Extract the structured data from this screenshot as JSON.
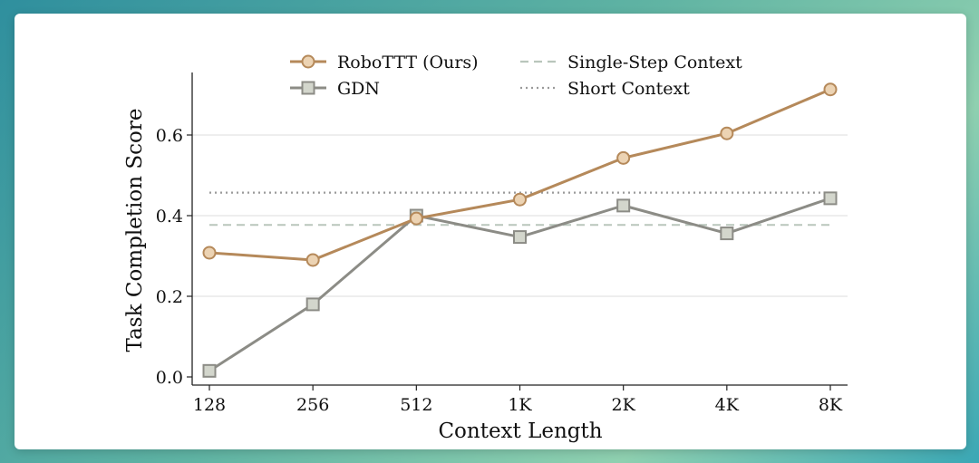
{
  "chart_data": {
    "type": "line",
    "categories": [
      "128",
      "256",
      "512",
      "1K",
      "2K",
      "4K",
      "8K"
    ],
    "xlabel": "Context Length",
    "ylabel": "Task Completion Score",
    "ylim": [
      0.0,
      0.66
    ],
    "yticks": [
      "0.0",
      "0.2",
      "0.4",
      "0.6"
    ],
    "grid": "horizontal",
    "legend_position": "top",
    "series": [
      {
        "name": "RoboTTT (Ours)",
        "marker": "circle",
        "color": "#b5895a",
        "fill": "#ecd3b3",
        "values": [
          0.308,
          0.29,
          0.393,
          0.44,
          0.543,
          0.604,
          0.713
        ]
      },
      {
        "name": "GDN",
        "marker": "square",
        "color": "#8c8c86",
        "fill": "#d3d6cc",
        "values": [
          0.015,
          0.18,
          0.4,
          0.347,
          0.425,
          0.356,
          0.443
        ]
      }
    ],
    "reference_lines": [
      {
        "name": "Single-Step Context",
        "style": "dashed",
        "color": "#b9c6bc",
        "value": 0.377
      },
      {
        "name": "Short Context",
        "style": "dotted",
        "color": "#9a9a9a",
        "value": 0.457
      }
    ]
  }
}
